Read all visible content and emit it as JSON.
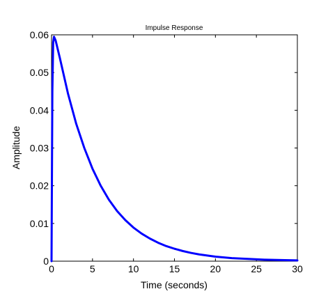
{
  "chart_data": {
    "type": "line",
    "title": "Impulse Response",
    "xlabel": "Time (seconds)",
    "ylabel": "Amplitude",
    "xlim": [
      0,
      30
    ],
    "ylim": [
      0,
      0.06
    ],
    "x_ticks": [
      0,
      5,
      10,
      15,
      20,
      25,
      30
    ],
    "y_ticks": [
      0,
      0.01,
      0.02,
      0.03,
      0.04,
      0.05,
      0.06
    ],
    "x_tick_labels": [
      "0",
      "5",
      "10",
      "15",
      "20",
      "25",
      "30"
    ],
    "y_tick_labels": [
      "0",
      "0.01",
      "0.02",
      "0.03",
      "0.04",
      "0.05",
      "0.06"
    ],
    "grid": false,
    "series": [
      {
        "color": "#0000ff",
        "x": [
          0,
          0.05,
          0.1,
          0.2,
          0.3,
          0.5,
          1,
          2,
          3,
          4,
          5,
          6,
          7,
          8,
          9,
          10,
          11,
          12,
          13,
          14,
          15,
          16,
          17,
          18,
          19,
          20,
          22,
          24,
          26,
          28,
          30
        ],
        "y": [
          0,
          0.023,
          0.045,
          0.058,
          0.0595,
          0.0585,
          0.054,
          0.0445,
          0.0365,
          0.03,
          0.0245,
          0.02,
          0.0163,
          0.0133,
          0.0109,
          0.0089,
          0.0073,
          0.006,
          0.0049,
          0.004,
          0.0033,
          0.0027,
          0.0022,
          0.0018,
          0.0015,
          0.0012,
          0.0008,
          0.0006,
          0.0004,
          0.0003,
          0.0002
        ]
      }
    ]
  }
}
